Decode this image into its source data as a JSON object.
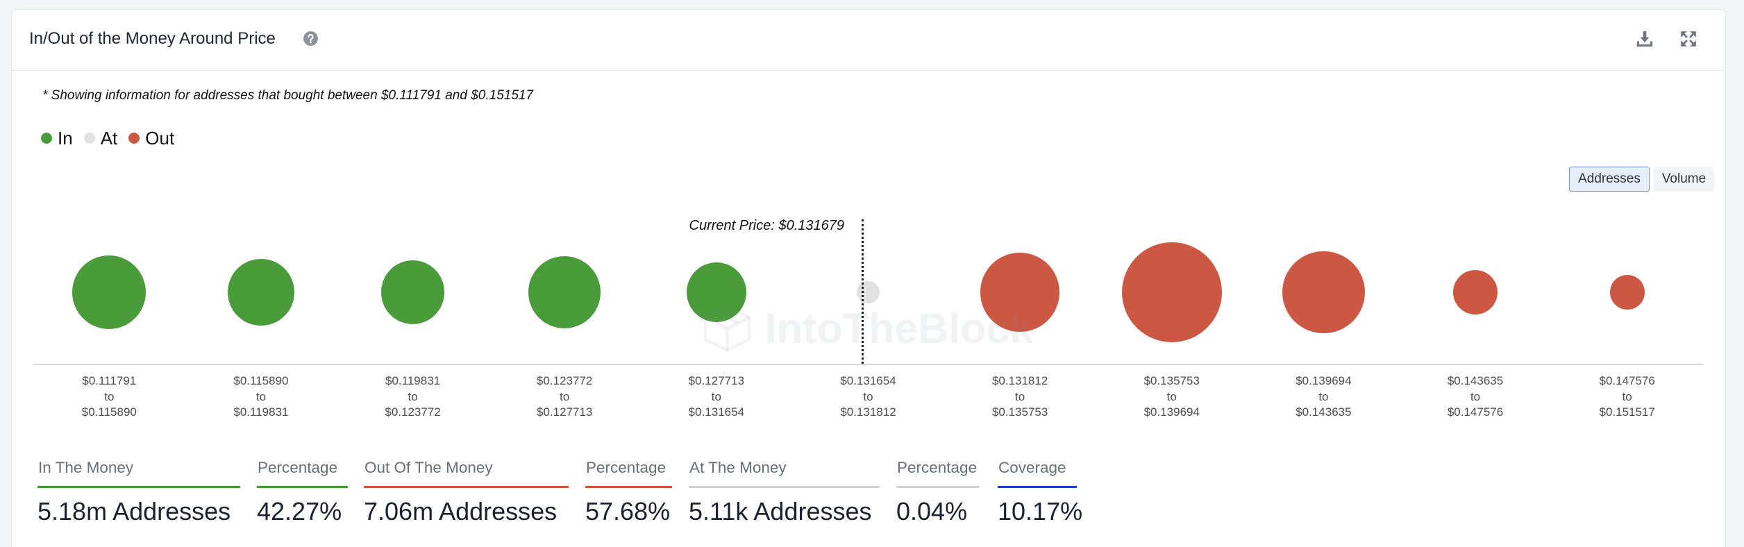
{
  "chart_data": {
    "type": "scatter",
    "title": "In/Out of the Money Around Price",
    "note": "* Showing information for addresses that bought between $0.111791 and $0.151517",
    "series": [
      {
        "name": "In",
        "color": "#4a9c3b"
      },
      {
        "name": "At",
        "color": "#e1e1e1"
      },
      {
        "name": "Out",
        "color": "#cc5843"
      }
    ],
    "current_price": {
      "label": "Current Price: $0.131679",
      "value": 0.131679
    },
    "range_joiner": "to",
    "points": [
      {
        "low": "$0.111791",
        "high": "$0.115890",
        "series": 0,
        "size": 54
      },
      {
        "low": "$0.115890",
        "high": "$0.119831",
        "series": 0,
        "size": 44
      },
      {
        "low": "$0.119831",
        "high": "$0.123772",
        "series": 0,
        "size": 40
      },
      {
        "low": "$0.123772",
        "high": "$0.127713",
        "series": 0,
        "size": 52
      },
      {
        "low": "$0.127713",
        "high": "$0.131654",
        "series": 0,
        "size": 36
      },
      {
        "low": "$0.131654",
        "high": "$0.131812",
        "series": 1,
        "size": 5
      },
      {
        "low": "$0.131812",
        "high": "$0.135753",
        "series": 2,
        "size": 62
      },
      {
        "low": "$0.135753",
        "high": "$0.139694",
        "series": 2,
        "size": 100
      },
      {
        "low": "$0.139694",
        "high": "$0.143635",
        "series": 2,
        "size": 68
      },
      {
        "low": "$0.143635",
        "high": "$0.147576",
        "series": 2,
        "size": 20
      },
      {
        "low": "$0.147576",
        "high": "$0.151517",
        "series": 2,
        "size": 12
      }
    ]
  },
  "toggle": {
    "options": [
      "Addresses",
      "Volume"
    ],
    "selected_index": 0
  },
  "stats": [
    {
      "title": "In The Money",
      "value": "5.18m Addresses",
      "color": "#3d9b2f"
    },
    {
      "title": "Percentage",
      "value": "42.27%",
      "color": "#3d9b2f"
    },
    {
      "title": "Out Of The Money",
      "value": "7.06m Addresses",
      "color": "#d4523c"
    },
    {
      "title": "Percentage",
      "value": "57.68%",
      "color": "#d4523c"
    },
    {
      "title": "At The Money",
      "value": "5.11k Addresses",
      "color": "#d3d3d3"
    },
    {
      "title": "Percentage",
      "value": "0.04%",
      "color": "#d3d3d3"
    },
    {
      "title": "Coverage",
      "value": "10.17%",
      "color": "#1d3fd6"
    }
  ],
  "icons": {
    "help": "question-circle-icon",
    "download": "download-icon",
    "expand": "expand-icon"
  },
  "watermark": "IntoTheBlock"
}
